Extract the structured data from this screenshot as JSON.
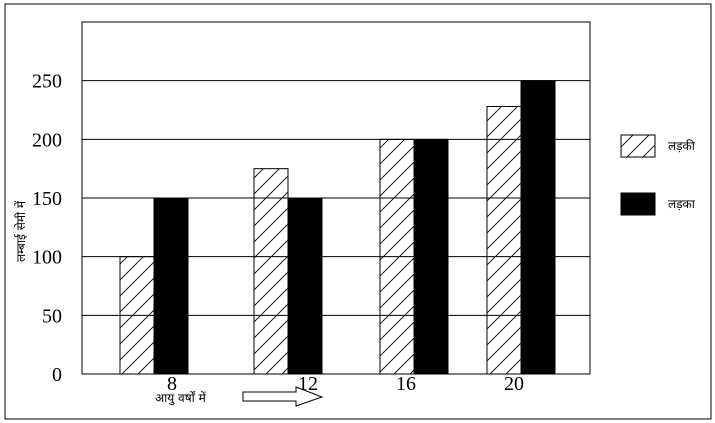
{
  "chart_data": {
    "type": "bar",
    "title": "",
    "xlabel": "आयु वर्षों में",
    "ylabel": "लम्बाई सेमी में",
    "categories": [
      "8",
      "12",
      "16",
      "20"
    ],
    "series": [
      {
        "name": "लड़की",
        "values": [
          100,
          175,
          200,
          228
        ],
        "fill": "hatch"
      },
      {
        "name": "लड़का",
        "values": [
          150,
          150,
          200,
          250
        ],
        "fill": "solid"
      }
    ],
    "ylim": [
      0,
      300
    ],
    "yticks": [
      0,
      50,
      100,
      150,
      200,
      250
    ],
    "grid": true,
    "legend_position": "right"
  },
  "colors": {
    "ink": "#000000",
    "background": "#ffffff",
    "grid": "#000000"
  }
}
